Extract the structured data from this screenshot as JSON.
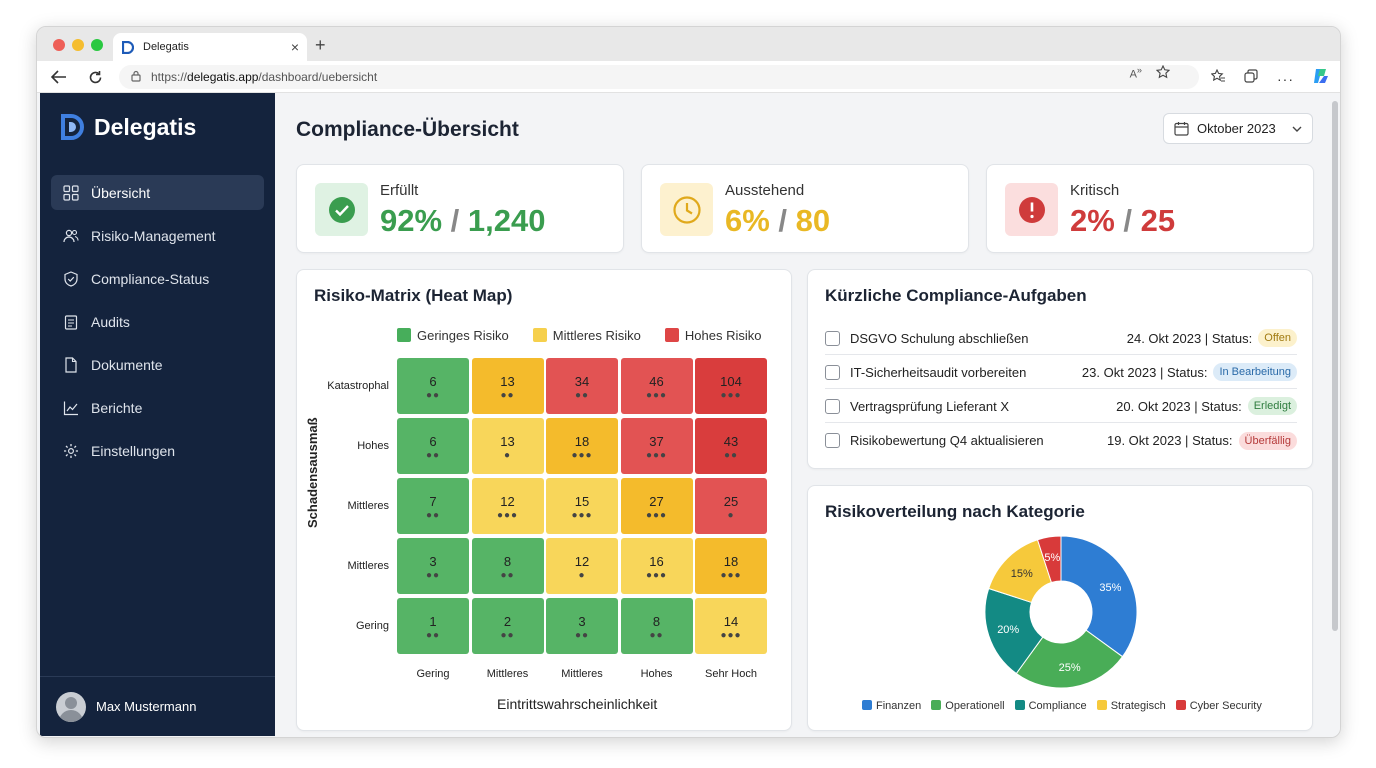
{
  "browser": {
    "tab_title": "Delegatis",
    "url_scheme": "https://",
    "url_host": "delegatis.app",
    "url_path": "/dashboard/uebersicht"
  },
  "sidebar": {
    "brand": "Delegatis",
    "items": [
      {
        "label": "Übersicht",
        "icon": "grid-icon",
        "active": true
      },
      {
        "label": "Risiko-Management",
        "icon": "users-icon"
      },
      {
        "label": "Compliance-Status",
        "icon": "shield-icon"
      },
      {
        "label": "Audits",
        "icon": "clipboard-icon"
      },
      {
        "label": "Dokumente",
        "icon": "document-icon"
      },
      {
        "label": "Berichte",
        "icon": "chart-icon"
      },
      {
        "label": "Einstellungen",
        "icon": "gear-icon"
      }
    ],
    "user_name": "Max Mustermann"
  },
  "header": {
    "title": "Compliance-Übersicht",
    "month": "Oktober 2023"
  },
  "stats": [
    {
      "label": "Erfüllt",
      "percent": "92%",
      "sep": " / ",
      "count": "1,240",
      "color": "#3a9d4f",
      "bg": "#dff2e3"
    },
    {
      "label": "Ausstehend",
      "percent": "6%",
      "sep": " / ",
      "count": "80",
      "color": "#e9b824",
      "bg": "#fdf1cf"
    },
    {
      "label": "Kritisch",
      "percent": "2%",
      "sep": " / ",
      "count": "25",
      "color": "#cf3b3b",
      "bg": "#fbdede"
    }
  ],
  "matrix": {
    "title": "Risiko-Matrix (Heat Map)",
    "legend": [
      {
        "label": "Geringes Risiko",
        "color": "#47ae5b"
      },
      {
        "label": "Mittleres Risiko",
        "color": "#f6d04d"
      },
      {
        "label": "Hohes Risiko",
        "color": "#de4646"
      }
    ],
    "y_title": "Schadensausmaß",
    "x_title": "Eintrittswahrscheinlichkeit",
    "rows": [
      "Katastrophal",
      "Hohes",
      "Mittleres",
      "Mittleres",
      "Gering"
    ],
    "cols": [
      "Gering",
      "Mittleres",
      "Mittleres",
      "Hohes",
      "Sehr Hoch"
    ],
    "colors": {
      "green": "#56b466",
      "yellow": "#f8d65a",
      "orange": "#f4bb2c",
      "red": "#e25353",
      "darkred": "#d93d3d"
    },
    "cells": [
      [
        {
          "v": "6",
          "d": "●●",
          "c": "green"
        },
        {
          "v": "13",
          "d": "●●",
          "c": "orange"
        },
        {
          "v": "34",
          "d": "●●",
          "c": "red"
        },
        {
          "v": "46",
          "d": "●●●",
          "c": "red"
        },
        {
          "v": "104",
          "d": "●●●",
          "c": "darkred"
        }
      ],
      [
        {
          "v": "6",
          "d": "●●",
          "c": "green"
        },
        {
          "v": "13",
          "d": "●",
          "c": "yellow"
        },
        {
          "v": "18",
          "d": "●●●",
          "c": "orange"
        },
        {
          "v": "37",
          "d": "●●●",
          "c": "red"
        },
        {
          "v": "43",
          "d": "●●",
          "c": "darkred"
        }
      ],
      [
        {
          "v": "7",
          "d": "●●",
          "c": "green"
        },
        {
          "v": "12",
          "d": "●●●",
          "c": "yellow"
        },
        {
          "v": "15",
          "d": "●●●",
          "c": "yellow"
        },
        {
          "v": "27",
          "d": "●●●",
          "c": "orange"
        },
        {
          "v": "25",
          "d": "●",
          "c": "red"
        }
      ],
      [
        {
          "v": "3",
          "d": "●●",
          "c": "green"
        },
        {
          "v": "8",
          "d": "●●",
          "c": "green"
        },
        {
          "v": "12",
          "d": "●",
          "c": "yellow"
        },
        {
          "v": "16",
          "d": "●●●",
          "c": "yellow"
        },
        {
          "v": "18",
          "d": "●●●",
          "c": "orange"
        }
      ],
      [
        {
          "v": "1",
          "d": "●●",
          "c": "green"
        },
        {
          "v": "2",
          "d": "●●",
          "c": "green"
        },
        {
          "v": "3",
          "d": "●●",
          "c": "green"
        },
        {
          "v": "8",
          "d": "●●",
          "c": "green"
        },
        {
          "v": "14",
          "d": "●●●",
          "c": "yellow"
        }
      ]
    ]
  },
  "tasks": {
    "title": "Kürzliche Compliance-Aufgaben",
    "status_prefix": "Status:",
    "items": [
      {
        "name": "DSGVO Schulung abschließen",
        "date": "24. Okt 2023 |",
        "status": "Offen",
        "fg": "#a07a10",
        "bg": "#fcf1cc"
      },
      {
        "name": "IT-Sicherheitsaudit vorbereiten",
        "date": "23. Okt 2023 |",
        "status": "In Bearbeitung",
        "fg": "#2a6aa8",
        "bg": "#dcebf8"
      },
      {
        "name": "Vertragsprüfung Lieferant X",
        "date": "20. Okt 2023 |",
        "status": "Erledigt",
        "fg": "#2f7d3f",
        "bg": "#dbf0de"
      },
      {
        "name": "Risikobewertung Q4 aktualisieren",
        "date": "19. Okt 2023 |",
        "status": "Überfällig",
        "fg": "#b53a3a",
        "bg": "#fbdcdc"
      }
    ]
  },
  "chart_data": {
    "type": "pie",
    "title": "Risikoverteilung nach Kategorie",
    "donut": true,
    "labels": [
      "Finanzen",
      "Operationell",
      "Compliance",
      "Strategisch",
      "Cyber Security"
    ],
    "values": [
      35,
      25,
      20,
      15,
      5
    ],
    "value_labels": [
      "35%",
      "25%",
      "20%",
      "15%",
      "5%"
    ],
    "colors": [
      "#2e7dd3",
      "#49ad57",
      "#138a84",
      "#f6c93b",
      "#d83a3a"
    ],
    "legend_position": "bottom"
  }
}
